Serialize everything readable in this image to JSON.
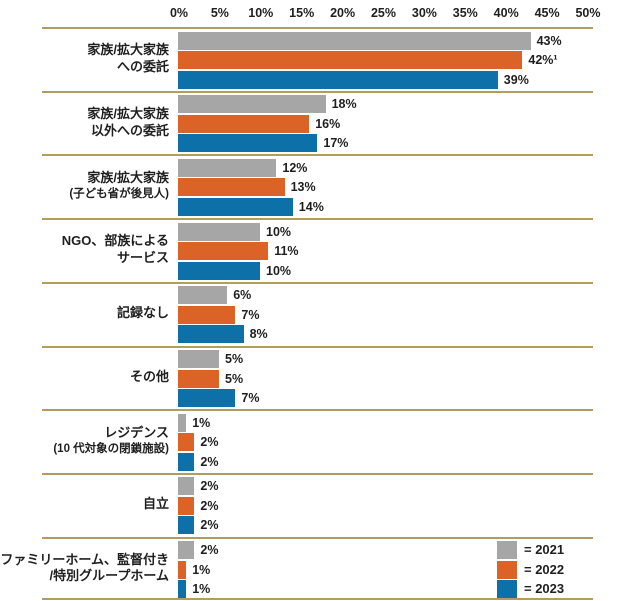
{
  "chart_data": {
    "type": "bar",
    "orientation": "horizontal",
    "title": "",
    "unit": "percent",
    "grid": false,
    "legend_position": "bottom-right",
    "axis": {
      "side": "top",
      "min": 0,
      "max": 50,
      "tick_values": [
        0,
        5,
        10,
        15,
        20,
        25,
        30,
        35,
        40,
        45,
        50
      ],
      "ticks": [
        "0%",
        "5%",
        "10%",
        "15%",
        "20%",
        "25%",
        "30%",
        "35%",
        "40%",
        "45%",
        "50%"
      ]
    },
    "series": [
      {
        "name": "2021",
        "color": "#a6a6a6"
      },
      {
        "name": "2022",
        "color": "#dc6328"
      },
      {
        "name": "2023",
        "color": "#0e70a8"
      }
    ],
    "categories": [
      {
        "lines": [
          "家族/拡大家族",
          "への委託"
        ],
        "small_second_line": false,
        "values": [
          43,
          42,
          39
        ],
        "value_labels": [
          "43%",
          "42%¹",
          "39%"
        ]
      },
      {
        "lines": [
          "家族/拡大家族",
          "以外への委託"
        ],
        "small_second_line": false,
        "values": [
          18,
          16,
          17
        ],
        "value_labels": [
          "18%",
          "16%",
          "17%"
        ]
      },
      {
        "lines": [
          "家族/拡大家族",
          "(子ども省が後見人)"
        ],
        "small_second_line": true,
        "values": [
          12,
          13,
          14
        ],
        "value_labels": [
          "12%",
          "13%",
          "14%"
        ]
      },
      {
        "lines": [
          "NGO、部族による",
          "サービス"
        ],
        "small_second_line": false,
        "values": [
          10,
          11,
          10
        ],
        "value_labels": [
          "10%",
          "11%",
          "10%"
        ]
      },
      {
        "lines": [
          "記録なし"
        ],
        "small_second_line": false,
        "values": [
          6,
          7,
          8
        ],
        "value_labels": [
          "6%",
          "7%",
          "8%"
        ]
      },
      {
        "lines": [
          "その他"
        ],
        "small_second_line": false,
        "values": [
          5,
          5,
          7
        ],
        "value_labels": [
          "5%",
          "5%",
          "7%"
        ]
      },
      {
        "lines": [
          "レジデンス",
          "(10 代対象の閉鎖施設)"
        ],
        "small_second_line": true,
        "values": [
          1,
          2,
          2
        ],
        "value_labels": [
          "1%",
          "2%",
          "2%"
        ]
      },
      {
        "lines": [
          "自立"
        ],
        "small_second_line": false,
        "values": [
          2,
          2,
          2
        ],
        "value_labels": [
          "2%",
          "2%",
          "2%"
        ]
      },
      {
        "lines": [
          "ファミリーホーム、監督付き",
          "/特別グループホーム"
        ],
        "small_second_line": false,
        "values": [
          2,
          1,
          1
        ],
        "value_labels": [
          "2%",
          "1%",
          "1%"
        ]
      }
    ],
    "legend": {
      "items": [
        {
          "label": "= 2021",
          "color": "#a6a6a6"
        },
        {
          "label": "= 2022",
          "color": "#dc6328"
        },
        {
          "label": "= 2023",
          "color": "#0e70a8"
        }
      ]
    },
    "styles": {
      "separator_color": "#b29d5f",
      "text_color": "#1f1f1f",
      "background_color": "#ffffff"
    }
  }
}
